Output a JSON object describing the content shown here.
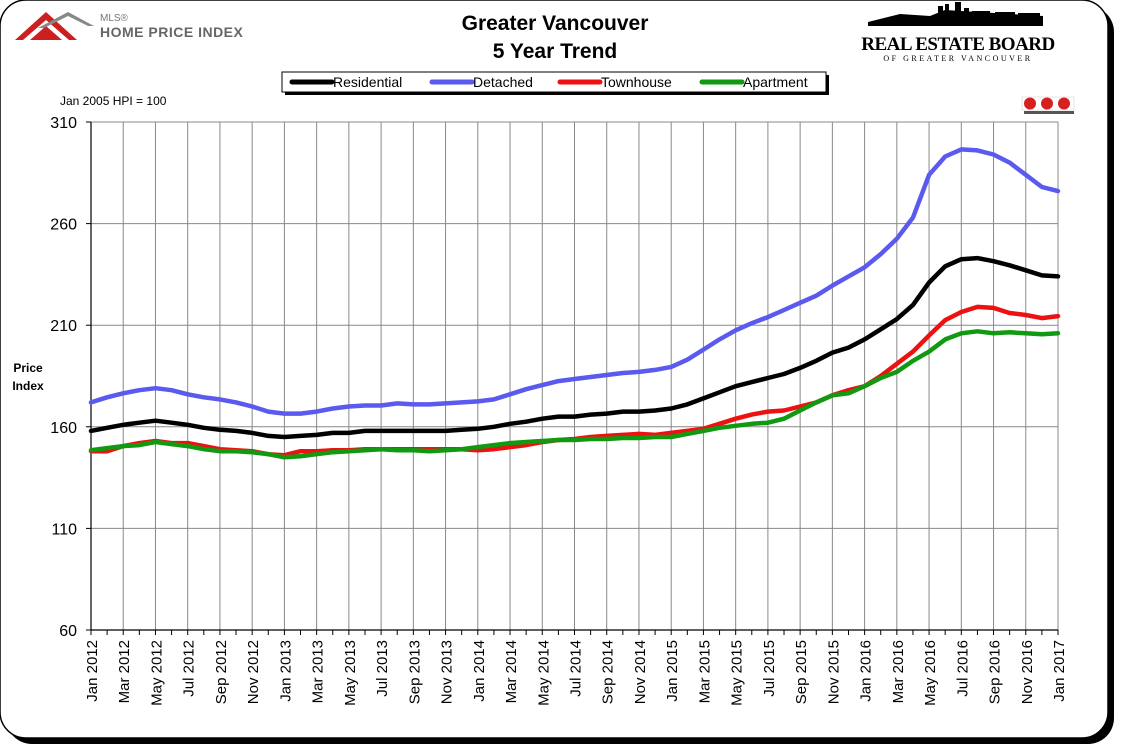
{
  "header": {
    "title_line1": "Greater Vancouver",
    "title_line2": "5 Year Trend",
    "hpi_logo_small": "MLS®",
    "hpi_logo_main": "HOME PRICE INDEX",
    "board_name": "REAL ESTATE BOARD",
    "board_sub": "OF GREATER VANCOUVER",
    "base_note": "Jan 2005 HPI = 100",
    "mls_logo": "MLS"
  },
  "colors": {
    "residential": "#000000",
    "detached": "#5a5aee",
    "townhouse": "#ee1111",
    "apartment": "#119911",
    "grid": "#888888"
  },
  "chart_data": {
    "type": "line",
    "title": "Greater Vancouver 5 Year Trend",
    "ylabel": "Price Index",
    "ylim": [
      60,
      310
    ],
    "yticks": [
      60,
      110,
      160,
      210,
      260,
      310
    ],
    "grid": true,
    "legend_position": "top",
    "x": [
      "Jan 2012",
      "Feb 2012",
      "Mar 2012",
      "Apr 2012",
      "May 2012",
      "Jun 2012",
      "Jul 2012",
      "Aug 2012",
      "Sep 2012",
      "Oct 2012",
      "Nov 2012",
      "Dec 2012",
      "Jan 2013",
      "Feb 2013",
      "Mar 2013",
      "Apr 2013",
      "May 2013",
      "Jun 2013",
      "Jul 2013",
      "Aug 2013",
      "Sep 2013",
      "Oct 2013",
      "Nov 2013",
      "Dec 2013",
      "Jan 2014",
      "Feb 2014",
      "Mar 2014",
      "Apr 2014",
      "May 2014",
      "Jun 2014",
      "Jul 2014",
      "Aug 2014",
      "Sep 2014",
      "Oct 2014",
      "Nov 2014",
      "Dec 2014",
      "Jan 2015",
      "Feb 2015",
      "Mar 2015",
      "Apr 2015",
      "May 2015",
      "Jun 2015",
      "Jul 2015",
      "Aug 2015",
      "Sep 2015",
      "Oct 2015",
      "Nov 2015",
      "Dec 2015",
      "Jan 2016",
      "Feb 2016",
      "Mar 2016",
      "Apr 2016",
      "May 2016",
      "Jun 2016",
      "Jul 2016",
      "Aug 2016",
      "Sep 2016",
      "Oct 2016",
      "Nov 2016",
      "Dec 2016",
      "Jan 2017"
    ],
    "xtick_labels": [
      "Jan 2012",
      "Mar 2012",
      "May 2012",
      "Jul 2012",
      "Sep 2012",
      "Nov 2012",
      "Jan 2013",
      "Mar 2013",
      "May 2013",
      "Jul 2013",
      "Sep 2013",
      "Nov 2013",
      "Jan 2014",
      "Mar 2014",
      "May 2014",
      "Jul 2014",
      "Sep 2014",
      "Nov 2014",
      "Jan 2015",
      "Mar 2015",
      "May 2015",
      "Jul 2015",
      "Sep 2015",
      "Nov 2015",
      "Jan 2016",
      "Mar 2016",
      "May 2016",
      "Jul 2016",
      "Sep 2016",
      "Nov 2016",
      "Jan 2017"
    ],
    "series": [
      {
        "name": "Residential",
        "color": "#000000",
        "values": [
          158,
          159.5,
          161,
          162,
          163,
          162,
          161,
          159.5,
          158.5,
          158,
          157,
          155.5,
          155,
          155.5,
          156,
          157,
          157,
          158,
          158,
          158,
          158,
          158,
          158,
          158.5,
          159,
          160,
          161.5,
          162.5,
          164,
          165,
          165,
          166,
          166.5,
          167.5,
          167.5,
          168,
          169,
          171,
          174,
          177,
          180,
          182,
          184,
          186,
          189,
          192.5,
          196.5,
          199,
          203,
          208,
          213,
          220,
          231,
          239,
          242.5,
          243,
          241.5,
          239.5,
          237,
          234.5,
          234
        ]
      },
      {
        "name": "Detached",
        "color": "#5a5aee",
        "values": [
          172,
          174.5,
          176.5,
          178,
          179,
          178,
          176,
          174.5,
          173.5,
          172,
          170,
          167.5,
          166.5,
          166.5,
          167.5,
          169,
          170,
          170.5,
          170.5,
          171.5,
          171,
          171,
          171.5,
          172,
          172.5,
          173.5,
          176,
          178.5,
          180.5,
          182.5,
          183.5,
          184.5,
          185.5,
          186.5,
          187,
          188,
          189.5,
          193,
          198,
          203,
          207.5,
          211,
          214,
          217.5,
          221,
          224.5,
          229.5,
          234,
          238.5,
          245,
          252.5,
          263,
          284,
          293,
          296.5,
          296,
          294,
          290,
          284,
          278,
          276
        ]
      },
      {
        "name": "Townhouse",
        "color": "#ee1111",
        "values": [
          148,
          148,
          150.5,
          152,
          153,
          152,
          152,
          150.5,
          149,
          148.5,
          148,
          146.5,
          146,
          148,
          148,
          148.5,
          148.5,
          149,
          149,
          149,
          149,
          149,
          149,
          149,
          148.5,
          149,
          150,
          151,
          152.5,
          153.5,
          154,
          155,
          155.5,
          156,
          156.5,
          156,
          157,
          158,
          159,
          161.5,
          164,
          166,
          167.5,
          168,
          170,
          172,
          175.5,
          178,
          180,
          185,
          191,
          197,
          205,
          212.5,
          216.5,
          219,
          218.5,
          216,
          215,
          213.5,
          214.5
        ]
      },
      {
        "name": "Apartment",
        "color": "#119911",
        "values": [
          148.5,
          149.5,
          150.5,
          151,
          152.5,
          151.5,
          150.5,
          149,
          148,
          148,
          147.5,
          146.5,
          145,
          145.5,
          146.5,
          147.5,
          148,
          148.5,
          149,
          148.5,
          148.5,
          148,
          148.5,
          149,
          150,
          151,
          152,
          152.5,
          153,
          153.5,
          153.5,
          154,
          154,
          154.5,
          154.5,
          155,
          155,
          156.5,
          158,
          159.5,
          160.5,
          161.5,
          162,
          164,
          168,
          172,
          175.5,
          176.5,
          180,
          184,
          187,
          192.5,
          197,
          203,
          206,
          207,
          206,
          206.5,
          206,
          205.5,
          206
        ]
      }
    ]
  }
}
